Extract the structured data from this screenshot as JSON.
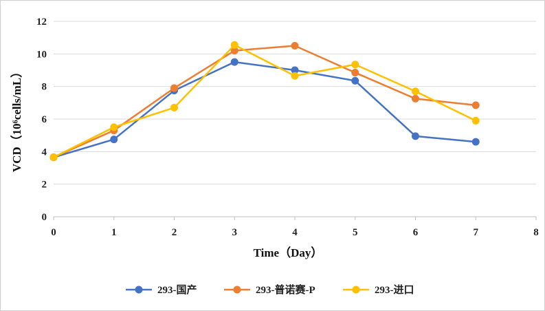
{
  "chart_data": {
    "type": "line",
    "x": [
      0,
      1,
      2,
      3,
      4,
      5,
      6,
      7
    ],
    "xlim": [
      0,
      8
    ],
    "ylim": [
      0,
      12
    ],
    "xticks": [
      "0",
      "1",
      "2",
      "3",
      "4",
      "5",
      "6",
      "7",
      "8"
    ],
    "yticks": [
      "0",
      "2",
      "4",
      "6",
      "8",
      "10",
      "12"
    ],
    "xlabel": "Time（Day）",
    "ylabel": "VCD（10⁶cells/mL）",
    "grid": "horizontal",
    "legend_position": "bottom",
    "series": [
      {
        "name": "293-国产",
        "color": "#4472C4",
        "values": [
          3.65,
          4.75,
          7.75,
          9.5,
          9.0,
          8.35,
          4.95,
          4.6
        ]
      },
      {
        "name": "293-普诺赛-P",
        "color": "#ED7D31",
        "values": [
          3.65,
          5.3,
          7.9,
          10.2,
          10.5,
          8.85,
          7.25,
          6.85
        ]
      },
      {
        "name": "293-进口",
        "color": "#FFC000",
        "values": [
          3.65,
          5.5,
          6.7,
          10.55,
          8.65,
          9.35,
          7.7,
          5.9
        ]
      }
    ]
  }
}
